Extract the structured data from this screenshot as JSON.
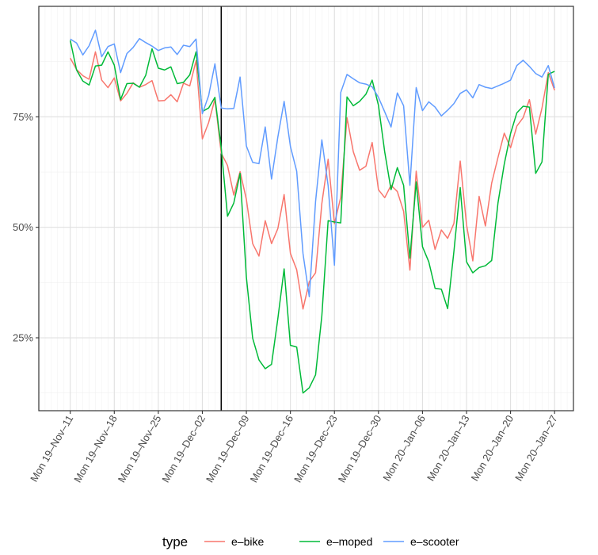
{
  "chart_data": {
    "type": "line",
    "title": "",
    "xlabel": "",
    "ylabel": "",
    "grid": true,
    "legend_position": "bottom",
    "legend_title": "type",
    "ylim": [
      0.085,
      1.0
    ],
    "xlim": [
      "2019-11-06",
      "2020-01-30"
    ],
    "y_ticks": [
      {
        "value": 0.25,
        "label": "25%"
      },
      {
        "value": 0.5,
        "label": "50%"
      },
      {
        "value": 0.75,
        "label": "75%"
      }
    ],
    "x_ticks": [
      {
        "date": "2019-11-11",
        "label": "Mon 19–Nov–11"
      },
      {
        "date": "2019-11-18",
        "label": "Mon 19–Nov–18"
      },
      {
        "date": "2019-11-25",
        "label": "Mon 19–Nov–25"
      },
      {
        "date": "2019-12-02",
        "label": "Mon 19–Dec–02"
      },
      {
        "date": "2019-12-09",
        "label": "Mon 19–Dec–09"
      },
      {
        "date": "2019-12-16",
        "label": "Mon 19–Dec–16"
      },
      {
        "date": "2019-12-23",
        "label": "Mon 19–Dec–23"
      },
      {
        "date": "2019-12-30",
        "label": "Mon 19–Dec–30"
      },
      {
        "date": "2020-01-06",
        "label": "Mon 20–Jan–06"
      },
      {
        "date": "2020-01-13",
        "label": "Mon 20–Jan–13"
      },
      {
        "date": "2020-01-20",
        "label": "Mon 20–Jan–20"
      },
      {
        "date": "2020-01-27",
        "label": "Mon 20–Jan–27"
      }
    ],
    "vertical_line_date": "2019-12-05",
    "x_start_date": "2019-11-11",
    "series": [
      {
        "name": "e–bike",
        "color": "#F8766D",
        "values": [
          0.883,
          0.857,
          0.843,
          0.835,
          0.897,
          0.833,
          0.816,
          0.838,
          0.786,
          0.803,
          0.827,
          0.817,
          0.823,
          0.832,
          0.786,
          0.787,
          0.8,
          0.784,
          0.826,
          0.82,
          0.877,
          0.7,
          0.737,
          0.79,
          0.668,
          0.64,
          0.573,
          0.626,
          0.563,
          0.463,
          0.435,
          0.515,
          0.463,
          0.497,
          0.574,
          0.441,
          0.404,
          0.315,
          0.377,
          0.397,
          0.554,
          0.654,
          0.508,
          0.568,
          0.748,
          0.671,
          0.629,
          0.638,
          0.692,
          0.585,
          0.567,
          0.595,
          0.581,
          0.536,
          0.403,
          0.627,
          0.5,
          0.516,
          0.45,
          0.494,
          0.475,
          0.509,
          0.65,
          0.506,
          0.424,
          0.57,
          0.503,
          0.6,
          0.658,
          0.713,
          0.68,
          0.729,
          0.748,
          0.789,
          0.711,
          0.77,
          0.85,
          0.81
        ]
      },
      {
        "name": "e–moped",
        "color": "#00BA38",
        "values": [
          0.923,
          0.856,
          0.831,
          0.822,
          0.865,
          0.867,
          0.897,
          0.867,
          0.789,
          0.825,
          0.826,
          0.817,
          0.844,
          0.904,
          0.86,
          0.856,
          0.863,
          0.825,
          0.828,
          0.845,
          0.897,
          0.762,
          0.77,
          0.794,
          0.68,
          0.525,
          0.555,
          0.622,
          0.387,
          0.249,
          0.2,
          0.18,
          0.19,
          0.293,
          0.406,
          0.233,
          0.229,
          0.125,
          0.137,
          0.166,
          0.3,
          0.515,
          0.512,
          0.51,
          0.795,
          0.775,
          0.785,
          0.801,
          0.833,
          0.776,
          0.67,
          0.585,
          0.635,
          0.595,
          0.43,
          0.603,
          0.456,
          0.422,
          0.362,
          0.36,
          0.316,
          0.446,
          0.59,
          0.422,
          0.397,
          0.409,
          0.413,
          0.425,
          0.555,
          0.643,
          0.712,
          0.759,
          0.774,
          0.772,
          0.622,
          0.648,
          0.846,
          0.853
        ]
      },
      {
        "name": "e–scooter",
        "color": "#619CFF",
        "values": [
          0.926,
          0.917,
          0.89,
          0.911,
          0.946,
          0.886,
          0.909,
          0.915,
          0.85,
          0.893,
          0.907,
          0.927,
          0.918,
          0.91,
          0.9,
          0.906,
          0.908,
          0.891,
          0.912,
          0.909,
          0.926,
          0.757,
          0.798,
          0.87,
          0.77,
          0.768,
          0.769,
          0.84,
          0.684,
          0.647,
          0.644,
          0.727,
          0.609,
          0.704,
          0.785,
          0.683,
          0.627,
          0.441,
          0.343,
          0.558,
          0.698,
          0.594,
          0.414,
          0.805,
          0.846,
          0.836,
          0.827,
          0.824,
          0.818,
          0.794,
          0.761,
          0.727,
          0.804,
          0.775,
          0.595,
          0.816,
          0.764,
          0.784,
          0.772,
          0.752,
          0.765,
          0.78,
          0.803,
          0.811,
          0.793,
          0.823,
          0.817,
          0.814,
          0.82,
          0.826,
          0.833,
          0.866,
          0.878,
          0.864,
          0.848,
          0.84,
          0.866,
          0.815
        ]
      }
    ]
  }
}
